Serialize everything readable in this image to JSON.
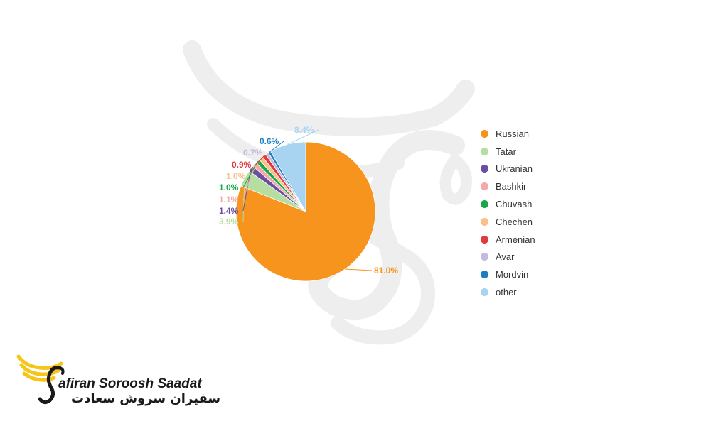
{
  "chart_data": {
    "type": "pie",
    "title": "",
    "slices": [
      {
        "label": "Russian",
        "value": 81.0,
        "display": "81.0%",
        "color": "#f7941d"
      },
      {
        "label": "Tatar",
        "value": 3.9,
        "display": "3.9%",
        "color": "#b5dea0"
      },
      {
        "label": "Ukranian",
        "value": 1.4,
        "display": "1.4%",
        "color": "#6a4fa0"
      },
      {
        "label": "Bashkir",
        "value": 1.1,
        "display": "1.1%",
        "color": "#f4a9a8"
      },
      {
        "label": "Chuvash",
        "value": 1.0,
        "display": "1.0%",
        "color": "#1aa64a"
      },
      {
        "label": "Chechen",
        "value": 1.0,
        "display": "1.0%",
        "color": "#f9c08a"
      },
      {
        "label": "Armenian",
        "value": 0.9,
        "display": "0.9%",
        "color": "#e0393e"
      },
      {
        "label": "Avar",
        "value": 0.7,
        "display": "0.7%",
        "color": "#c7b8dd"
      },
      {
        "label": "Mordvin",
        "value": 0.6,
        "display": "0.6%",
        "color": "#1a7fc1"
      },
      {
        "label": "other",
        "value": 8.4,
        "display": "8.4%",
        "color": "#a9d4f1"
      }
    ],
    "legend_position": "right"
  },
  "logo": {
    "name_en": "afiran Soroosh Saadat",
    "name_fa": "سفیران سروش سعادت",
    "colors": {
      "wing": "#f5c518",
      "text": "#1a1a1a"
    }
  },
  "watermark": {
    "color": "#ececec"
  }
}
